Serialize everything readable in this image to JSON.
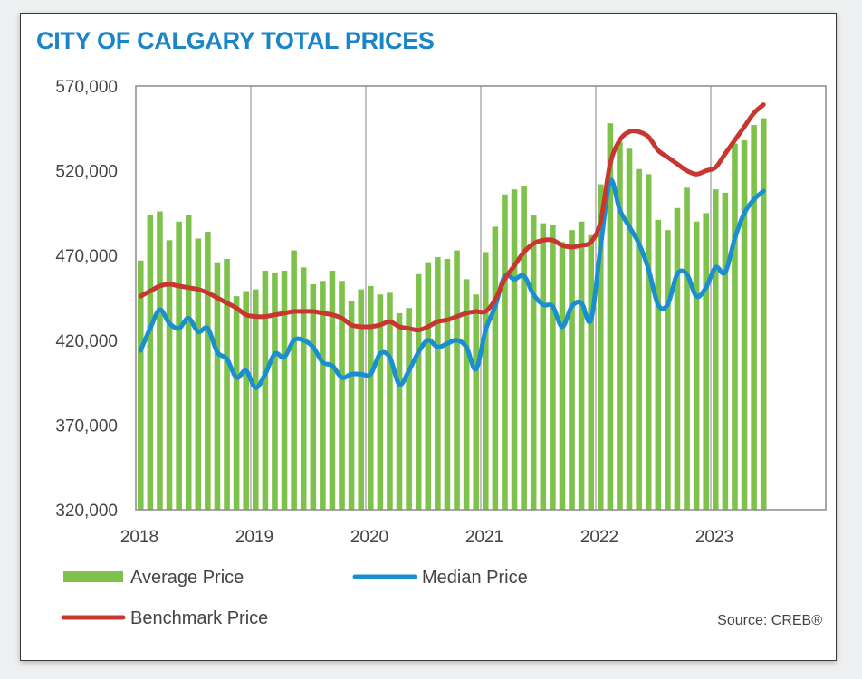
{
  "title": "CITY OF CALGARY TOTAL PRICES",
  "source": "Source: CREB®",
  "colors": {
    "title": "#1a86c8",
    "average": "#7ec14b",
    "median": "#1a8fcf",
    "benchmark": "#c8372f"
  },
  "chart_data": {
    "type": "bar",
    "title": "CITY OF CALGARY TOTAL PRICES",
    "xlabel": "",
    "ylabel": "",
    "ylim": [
      320000,
      570000
    ],
    "y_ticks": [
      "570,000",
      "520,000",
      "470,000",
      "420,000",
      "370,000",
      "320,000"
    ],
    "y_tick_values": [
      570000,
      520000,
      470000,
      420000,
      370000,
      320000
    ],
    "x_ticks": [
      "2018",
      "2019",
      "2020",
      "2021",
      "2022",
      "2023"
    ],
    "x_range": [
      "2018-01",
      "2024-01"
    ],
    "grid": "vertical lines at year boundaries",
    "legend": "bottom",
    "categories": [
      "2018-01",
      "2018-02",
      "2018-03",
      "2018-04",
      "2018-05",
      "2018-06",
      "2018-07",
      "2018-08",
      "2018-09",
      "2018-10",
      "2018-11",
      "2018-12",
      "2019-01",
      "2019-02",
      "2019-03",
      "2019-04",
      "2019-05",
      "2019-06",
      "2019-07",
      "2019-08",
      "2019-09",
      "2019-10",
      "2019-11",
      "2019-12",
      "2020-01",
      "2020-02",
      "2020-03",
      "2020-04",
      "2020-05",
      "2020-06",
      "2020-07",
      "2020-08",
      "2020-09",
      "2020-10",
      "2020-11",
      "2020-12",
      "2021-01",
      "2021-02",
      "2021-03",
      "2021-04",
      "2021-05",
      "2021-06",
      "2021-07",
      "2021-08",
      "2021-09",
      "2021-10",
      "2021-11",
      "2021-12",
      "2022-01",
      "2022-02",
      "2022-03",
      "2022-04",
      "2022-05",
      "2022-06",
      "2022-07",
      "2022-08",
      "2022-09",
      "2022-10",
      "2022-11",
      "2022-12",
      "2023-01",
      "2023-02",
      "2023-03",
      "2023-04",
      "2023-05",
      "2023-06"
    ],
    "series": [
      {
        "name": "Average Price",
        "type": "bar",
        "values": [
          467000,
          494000,
          496000,
          479000,
          490000,
          494000,
          480000,
          484000,
          466000,
          468000,
          446000,
          449000,
          450000,
          461000,
          460000,
          461000,
          473000,
          463000,
          453000,
          455000,
          461000,
          455000,
          443000,
          450000,
          452000,
          447000,
          448000,
          436000,
          439000,
          459000,
          466000,
          469000,
          468000,
          473000,
          456000,
          447000,
          472000,
          487000,
          506000,
          509000,
          511000,
          494000,
          489000,
          488000,
          478000,
          485000,
          490000,
          482000,
          512000,
          548000,
          537000,
          533000,
          521000,
          518000,
          491000,
          485000,
          498000,
          510000,
          490000,
          495000,
          509000,
          507000,
          536000,
          538000,
          547000,
          551000
        ]
      },
      {
        "name": "Median Price",
        "type": "line",
        "values": [
          414000,
          427000,
          438000,
          430000,
          427000,
          433000,
          425000,
          427000,
          413000,
          409000,
          398000,
          402000,
          392000,
          400000,
          412000,
          410000,
          420000,
          420000,
          416000,
          407000,
          405000,
          398000,
          400000,
          400000,
          400000,
          412000,
          410000,
          394000,
          402000,
          413000,
          420000,
          416000,
          418000,
          420000,
          416000,
          403000,
          426000,
          440000,
          458000,
          456000,
          458000,
          447000,
          441000,
          440000,
          428000,
          440000,
          442000,
          432000,
          475000,
          514000,
          497000,
          487000,
          477000,
          462000,
          441000,
          441000,
          459000,
          459000,
          446000,
          451000,
          463000,
          460000,
          480000,
          495000,
          503000,
          508000
        ]
      },
      {
        "name": "Benchmark Price",
        "type": "line",
        "values": [
          446000,
          449000,
          452000,
          453000,
          452000,
          451000,
          450000,
          448000,
          445000,
          442000,
          439000,
          435000,
          434000,
          434000,
          435000,
          436000,
          437000,
          437000,
          437000,
          436000,
          435000,
          433000,
          429000,
          428000,
          428000,
          429000,
          431000,
          428000,
          427000,
          426000,
          428000,
          431000,
          432000,
          434000,
          436000,
          437000,
          437000,
          444000,
          456000,
          464000,
          472000,
          477000,
          479000,
          479000,
          476000,
          475000,
          476000,
          478000,
          490000,
          524000,
          538000,
          543000,
          543000,
          540000,
          532000,
          528000,
          524000,
          520000,
          518000,
          520000,
          522000,
          530000,
          538000,
          546000,
          554000,
          559000
        ]
      }
    ]
  }
}
